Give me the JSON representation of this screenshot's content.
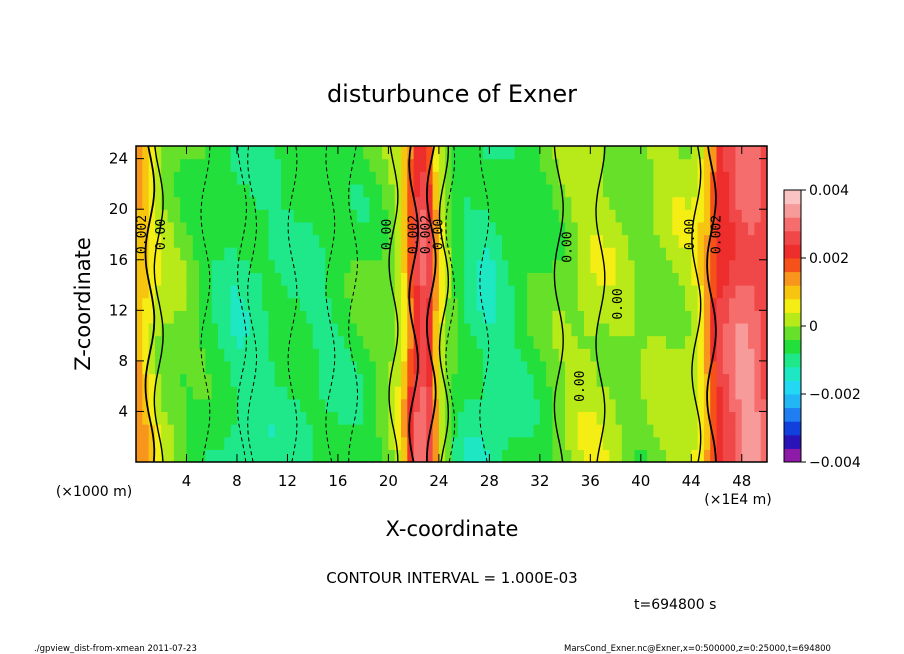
{
  "chart_data": {
    "type": "heatmap",
    "title": "disturbunce of Exner",
    "xlabel": "X-coordinate",
    "ylabel": "Z-coordinate",
    "x_unit_left": "(×1000 m)",
    "x_unit_right": "(×1E4 m)",
    "xlim": [
      0,
      50
    ],
    "ylim": [
      0,
      25
    ],
    "xticks": [
      "4",
      "8",
      "12",
      "16",
      "20",
      "24",
      "28",
      "32",
      "36",
      "40",
      "44",
      "48"
    ],
    "yticks": [
      "4",
      "8",
      "12",
      "16",
      "20",
      "24"
    ],
    "colorbar": {
      "range": [
        -0.004,
        0.004
      ],
      "labels": [
        "0.004",
        "0.002",
        "0",
        "−0.002",
        "−0.004"
      ],
      "colors": [
        "#8e1aa8",
        "#2a14b8",
        "#1140dd",
        "#1f7ef2",
        "#22b6f5",
        "#22d8f2",
        "#1ee8c4",
        "#1fe88a",
        "#22df3c",
        "#66e028",
        "#b8ea1a",
        "#f4ee14",
        "#f7c510",
        "#f7951c",
        "#f55118",
        "#ee2d2d",
        "#f04848",
        "#f56d6d",
        "#f79a9a",
        "#fbc4c4"
      ]
    },
    "column_profile": {
      "x": [
        0,
        1,
        2,
        4,
        6,
        8,
        10,
        12,
        14,
        16,
        18,
        20,
        21,
        22,
        23,
        24,
        25,
        26,
        28,
        30,
        32,
        34,
        36,
        38,
        40,
        42,
        44,
        45,
        46,
        47,
        48,
        49,
        50
      ],
      "value": [
        0.0015,
        0.0008,
        0.0001,
        -0.0003,
        -0.0007,
        -0.0011,
        -0.001,
        -0.0008,
        -0.0009,
        -0.0008,
        -0.0006,
        -0.0002,
        0.0004,
        0.0025,
        0.0032,
        0.0007,
        -0.0004,
        -0.0009,
        -0.0012,
        -0.0008,
        -0.0005,
        -0.0001,
        0.0003,
        0.0001,
        -0.0002,
        0.0001,
        0.0002,
        0.001,
        0.0024,
        0.0029,
        0.0034,
        0.0033,
        0.0027
      ]
    },
    "contour_labels": [
      {
        "x": 0.8,
        "z": 18,
        "text": "0.002"
      },
      {
        "x": 2.3,
        "z": 18,
        "text": "0.00"
      },
      {
        "x": 20.2,
        "z": 18,
        "text": "0.00"
      },
      {
        "x": 22.3,
        "z": 18,
        "text": "0.002"
      },
      {
        "x": 23.3,
        "z": 18,
        "text": "0.002"
      },
      {
        "x": 24.3,
        "z": 18,
        "text": "0.00"
      },
      {
        "x": 34.5,
        "z": 17,
        "text": "0.00"
      },
      {
        "x": 38.5,
        "z": 12.5,
        "text": "0.00"
      },
      {
        "x": 35.5,
        "z": 6,
        "text": "0.00"
      },
      {
        "x": 44.2,
        "z": 18,
        "text": "0.00"
      },
      {
        "x": 46.3,
        "z": 18,
        "text": "0.002"
      }
    ]
  },
  "annotations": {
    "contour_interval": "CONTOUR INTERVAL = 1.000E-03",
    "time": "t=694800 s",
    "footer_left": "./gpview_dist-from-xmean  2011-07-23",
    "footer_right": "MarsCond_Exner.nc@Exner,x=0:500000,z=0:25000,t=694800"
  }
}
